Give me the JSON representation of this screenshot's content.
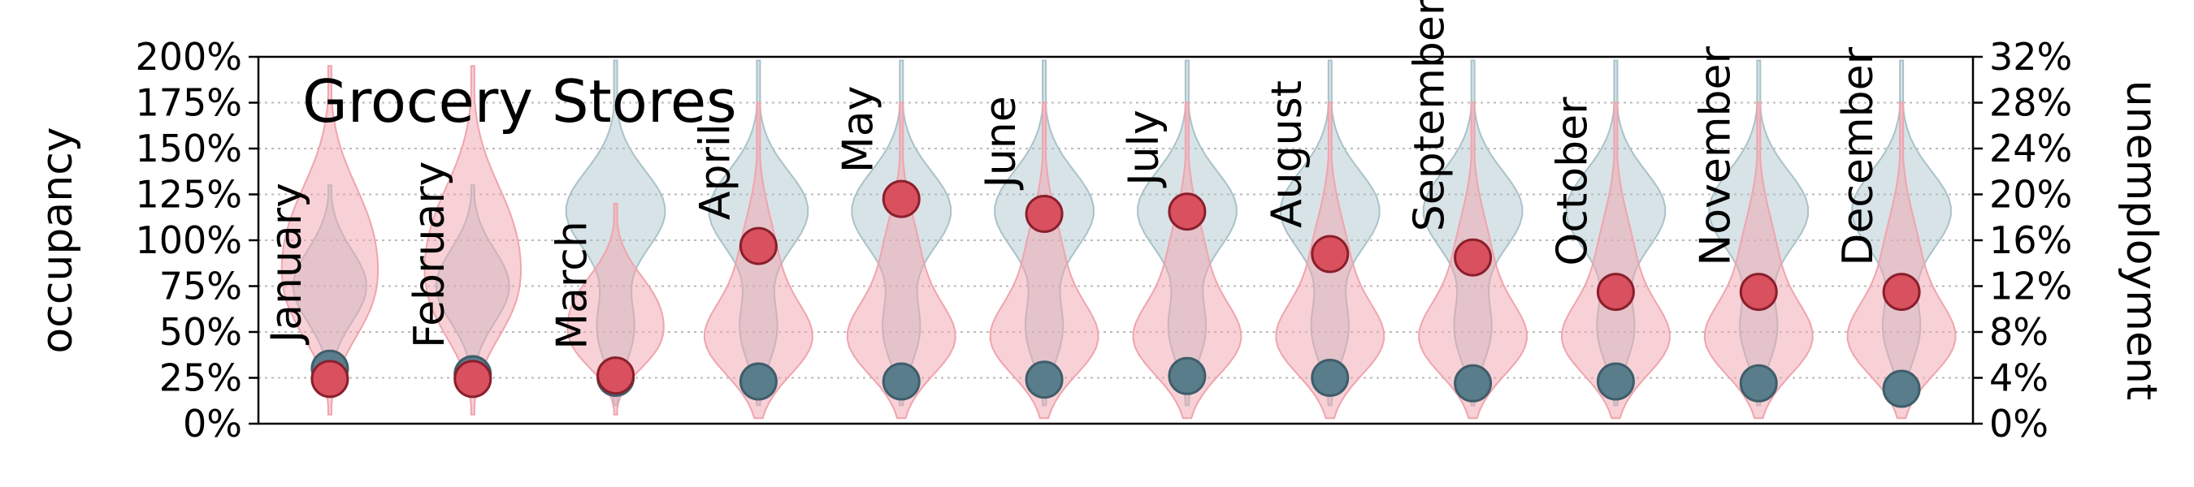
{
  "colors": {
    "occupancy": "#5a7d8c",
    "occupancy_edge": "#3f5d6a",
    "occupancy_violin": "#a9c2c9",
    "unemployment": "#d9505f",
    "unemployment_edge": "#8a1f2c",
    "unemployment_violin": "#f0a4ad",
    "grid": "#bbbbbb"
  },
  "chart_data": {
    "type": "violin",
    "title": "Grocery Stores",
    "ylabel_left": "occupancy",
    "ylabel_right": "unemployment",
    "ylim_left": [
      0,
      200
    ],
    "ylim_right": [
      0,
      32
    ],
    "yticks_left": [
      "0%",
      "25%",
      "50%",
      "75%",
      "100%",
      "125%",
      "150%",
      "175%",
      "200%"
    ],
    "yticks_right": [
      "0%",
      "4%",
      "8%",
      "12%",
      "16%",
      "20%",
      "24%",
      "28%",
      "32%"
    ],
    "grid": true,
    "categories": [
      "January",
      "February",
      "March",
      "April",
      "May",
      "June",
      "July",
      "August",
      "September",
      "October",
      "November",
      "December"
    ],
    "series": [
      {
        "name": "occupancy",
        "axis": "left",
        "values": [
          30,
          27,
          25,
          23,
          23,
          24,
          26,
          25,
          22,
          23,
          22,
          19
        ]
      },
      {
        "name": "unemployment",
        "axis": "right",
        "values": [
          3.9,
          3.9,
          4.2,
          15.5,
          19.6,
          18.3,
          18.5,
          14.8,
          14.5,
          11.5,
          11.5,
          11.5
        ]
      }
    ]
  }
}
